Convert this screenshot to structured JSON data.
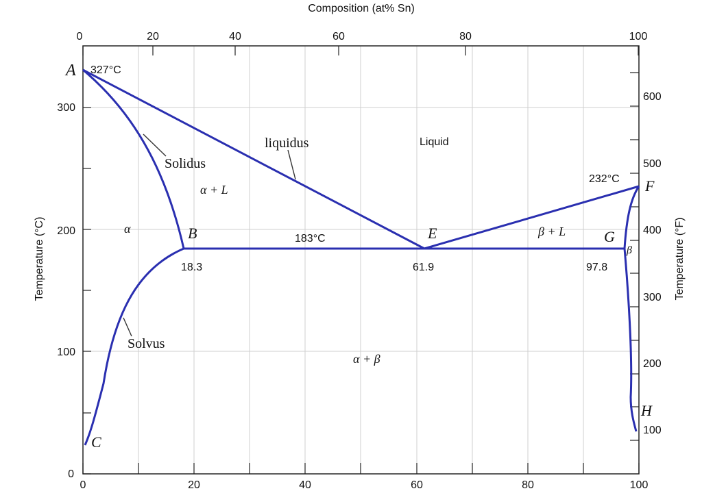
{
  "colors": {
    "phase_curve": "#2a2fb0",
    "grid": "#cfcfcf",
    "axis": "#222222",
    "label": "#111111"
  },
  "axes": {
    "top_title": "Composition (at% Sn)",
    "left_title": "Temperature (°C)",
    "right_title": "Temperature (°F)",
    "top_ticks": [
      "0",
      "20",
      "40",
      "60",
      "80",
      "100"
    ],
    "bottom_ticks": [
      "0",
      "20",
      "40",
      "60",
      "80",
      "100"
    ],
    "left_ticks": [
      "0",
      "100",
      "200",
      "300"
    ],
    "right_ticks": [
      "100",
      "200",
      "300",
      "400",
      "500",
      "600"
    ]
  },
  "point_labels": {
    "A": "A",
    "B": "B",
    "C": "C",
    "E": "E",
    "F": "F",
    "G": "G",
    "H": "H"
  },
  "values": {
    "temp_a": "327°C",
    "temp_f": "232°C",
    "temp_eutectic": "183°C",
    "comp_b": "18.3",
    "comp_e": "61.9",
    "comp_g": "97.8"
  },
  "curve_labels": {
    "solidus": "Solidus",
    "liquidus": "liquidus",
    "solvus": "Solvus"
  },
  "phase_labels": {
    "liquid": "Liquid",
    "alpha": "α",
    "alpha_plus_l": "α + L",
    "beta_plus_l": "β + L",
    "beta": "β",
    "alpha_plus_beta": "α + β"
  }
}
